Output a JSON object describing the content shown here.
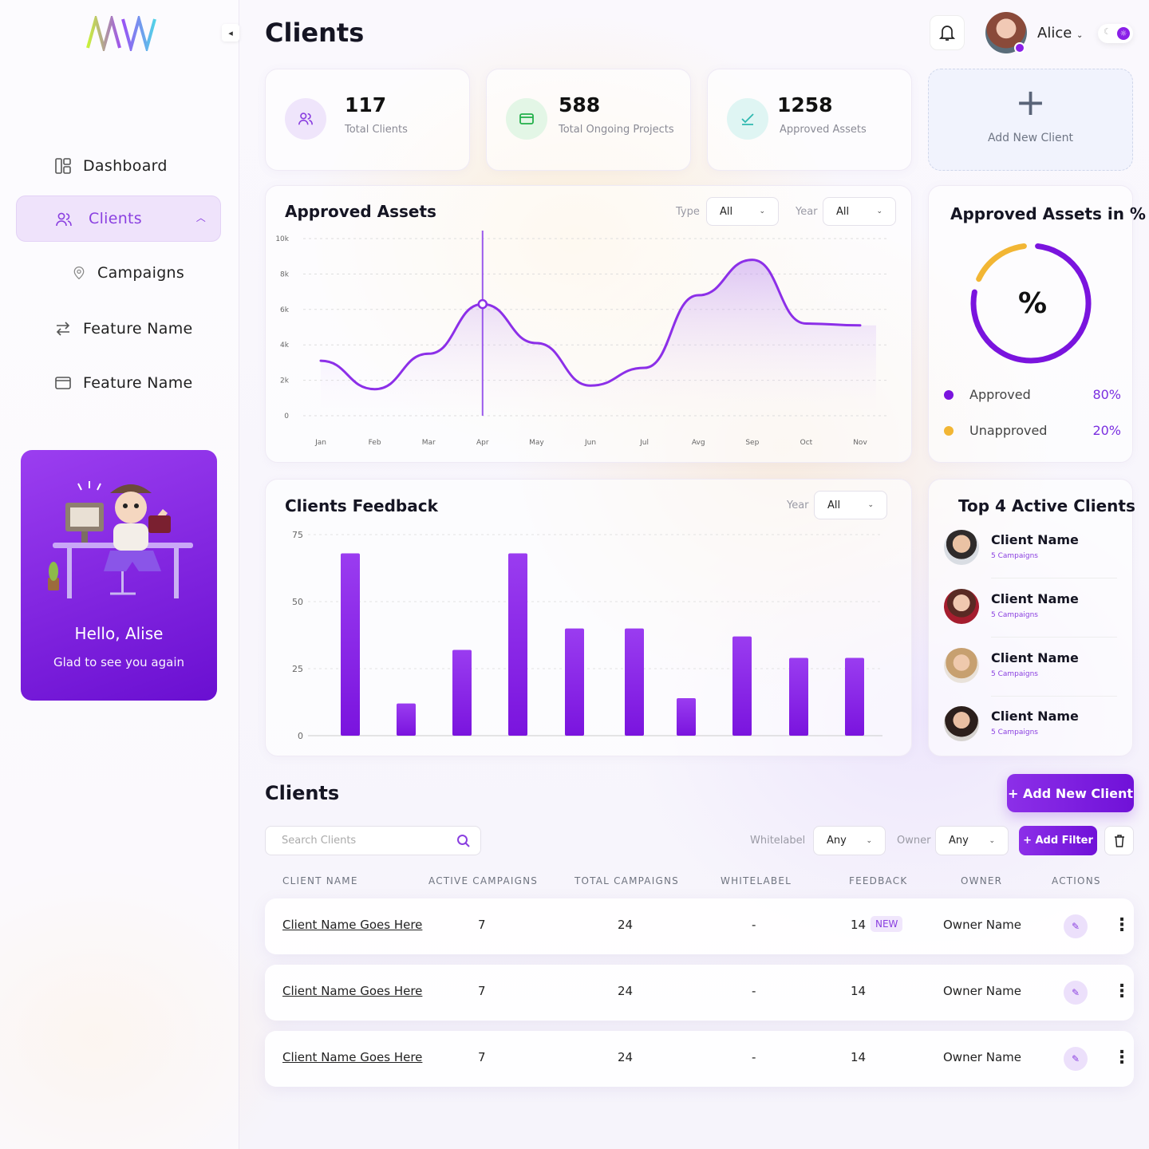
{
  "sidebar": {
    "logo_text": "MW",
    "collapse_icon": "arrow-left-icon",
    "nav": [
      {
        "label": "Dashboard",
        "icon": "dashboard-icon"
      },
      {
        "label": "Clients",
        "icon": "users-icon",
        "active": true
      },
      {
        "label": "Campaigns",
        "icon": "location-pin-icon"
      },
      {
        "label": "Feature Name",
        "icon": "arrows-icon"
      },
      {
        "label": "Feature Name",
        "icon": "window-icon"
      }
    ],
    "promo": {
      "greeting": "Hello, Alise",
      "subtitle": "Glad to see you again"
    }
  },
  "header": {
    "title": "Clients",
    "user_name": "Alice",
    "bell_icon": "bell-icon"
  },
  "stats": [
    {
      "value": "117",
      "label": "Total Clients",
      "icon": "users-icon",
      "color": "#8a3fe0"
    },
    {
      "value": "588",
      "label": "Total Ongoing Projects",
      "icon": "folder-icon",
      "color": "#22b04a"
    },
    {
      "value": "1258",
      "label": "Approved Assets",
      "icon": "check-icon",
      "color": "#2fb9b0"
    }
  ],
  "add_client_card": {
    "label": "Add New Client"
  },
  "approved_assets": {
    "title": "Approved Assets",
    "type_label": "Type",
    "type_value": "All",
    "year_label": "Year",
    "year_value": "All"
  },
  "approved_pct": {
    "title": "Approved Assets in %",
    "center": "%",
    "legend": [
      {
        "label": "Approved",
        "pct": "80%",
        "color": "#7a14de"
      },
      {
        "label": "Unapproved",
        "pct": "20%",
        "color": "#f2b634"
      }
    ]
  },
  "feedback": {
    "title": "Clients Feedback",
    "year_label": "Year",
    "year_value": "All"
  },
  "top_clients": {
    "title": "Top 4 Active Clients",
    "items": [
      {
        "name": "Client Name",
        "campaigns": "5 Campaigns"
      },
      {
        "name": "Client Name",
        "campaigns": "5 Campaigns"
      },
      {
        "name": "Client Name",
        "campaigns": "5 Campaigns"
      },
      {
        "name": "Client Name",
        "campaigns": "5 Campaigns"
      }
    ]
  },
  "clients_table": {
    "title": "Clients",
    "add_button": "+ Add New Client",
    "search_placeholder": "Search Clients",
    "whitelabel_label": "Whitelabel",
    "whitelabel_value": "Any",
    "owner_label": "Owner",
    "owner_value": "Any",
    "add_filter": "+ Add Filter",
    "columns": [
      "CLIENT NAME",
      "ACTIVE CAMPAIGNS",
      "TOTAL CAMPAIGNS",
      "WHITELABEL",
      "FEEDBACK",
      "OWNER",
      "ACTIONS"
    ],
    "rows": [
      {
        "name": "Client Name Goes Here",
        "active": "7",
        "total": "24",
        "whitelabel": "-",
        "feedback": "14",
        "badge": "NEW",
        "owner": "Owner Name"
      },
      {
        "name": "Client Name Goes Here",
        "active": "7",
        "total": "24",
        "whitelabel": "-",
        "feedback": "14",
        "badge": "",
        "owner": "Owner Name"
      },
      {
        "name": "Client Name Goes Here",
        "active": "7",
        "total": "24",
        "whitelabel": "-",
        "feedback": "14",
        "badge": "",
        "owner": "Owner Name"
      }
    ]
  },
  "chart_data": [
    {
      "type": "area",
      "title": "Approved Assets",
      "categories": [
        "Jan",
        "Feb",
        "Mar",
        "Apr",
        "May",
        "Jun",
        "Jul",
        "Avg",
        "Sep",
        "Oct",
        "Nov"
      ],
      "values": [
        3100,
        1500,
        3500,
        6300,
        4100,
        1700,
        2700,
        6800,
        8800,
        5200,
        5100
      ],
      "ylim": [
        0,
        10000
      ],
      "yticks": [
        "10k",
        "8k",
        "6k",
        "4k",
        "2k",
        "0"
      ],
      "highlight_index": 3,
      "colors": {
        "line": "#8c2fe8"
      }
    },
    {
      "type": "bar",
      "title": "Clients Feedback",
      "values": [
        68,
        12,
        32,
        68,
        40,
        40,
        14,
        37,
        29,
        29
      ],
      "ylim": [
        0,
        75
      ],
      "yticks": [
        "75",
        "50",
        "25",
        "0"
      ],
      "colors": {
        "bar": "#7a14de"
      }
    },
    {
      "type": "pie",
      "title": "Approved Assets in %",
      "labels": [
        "Approved",
        "Unapproved"
      ],
      "values": [
        80,
        20
      ]
    }
  ]
}
